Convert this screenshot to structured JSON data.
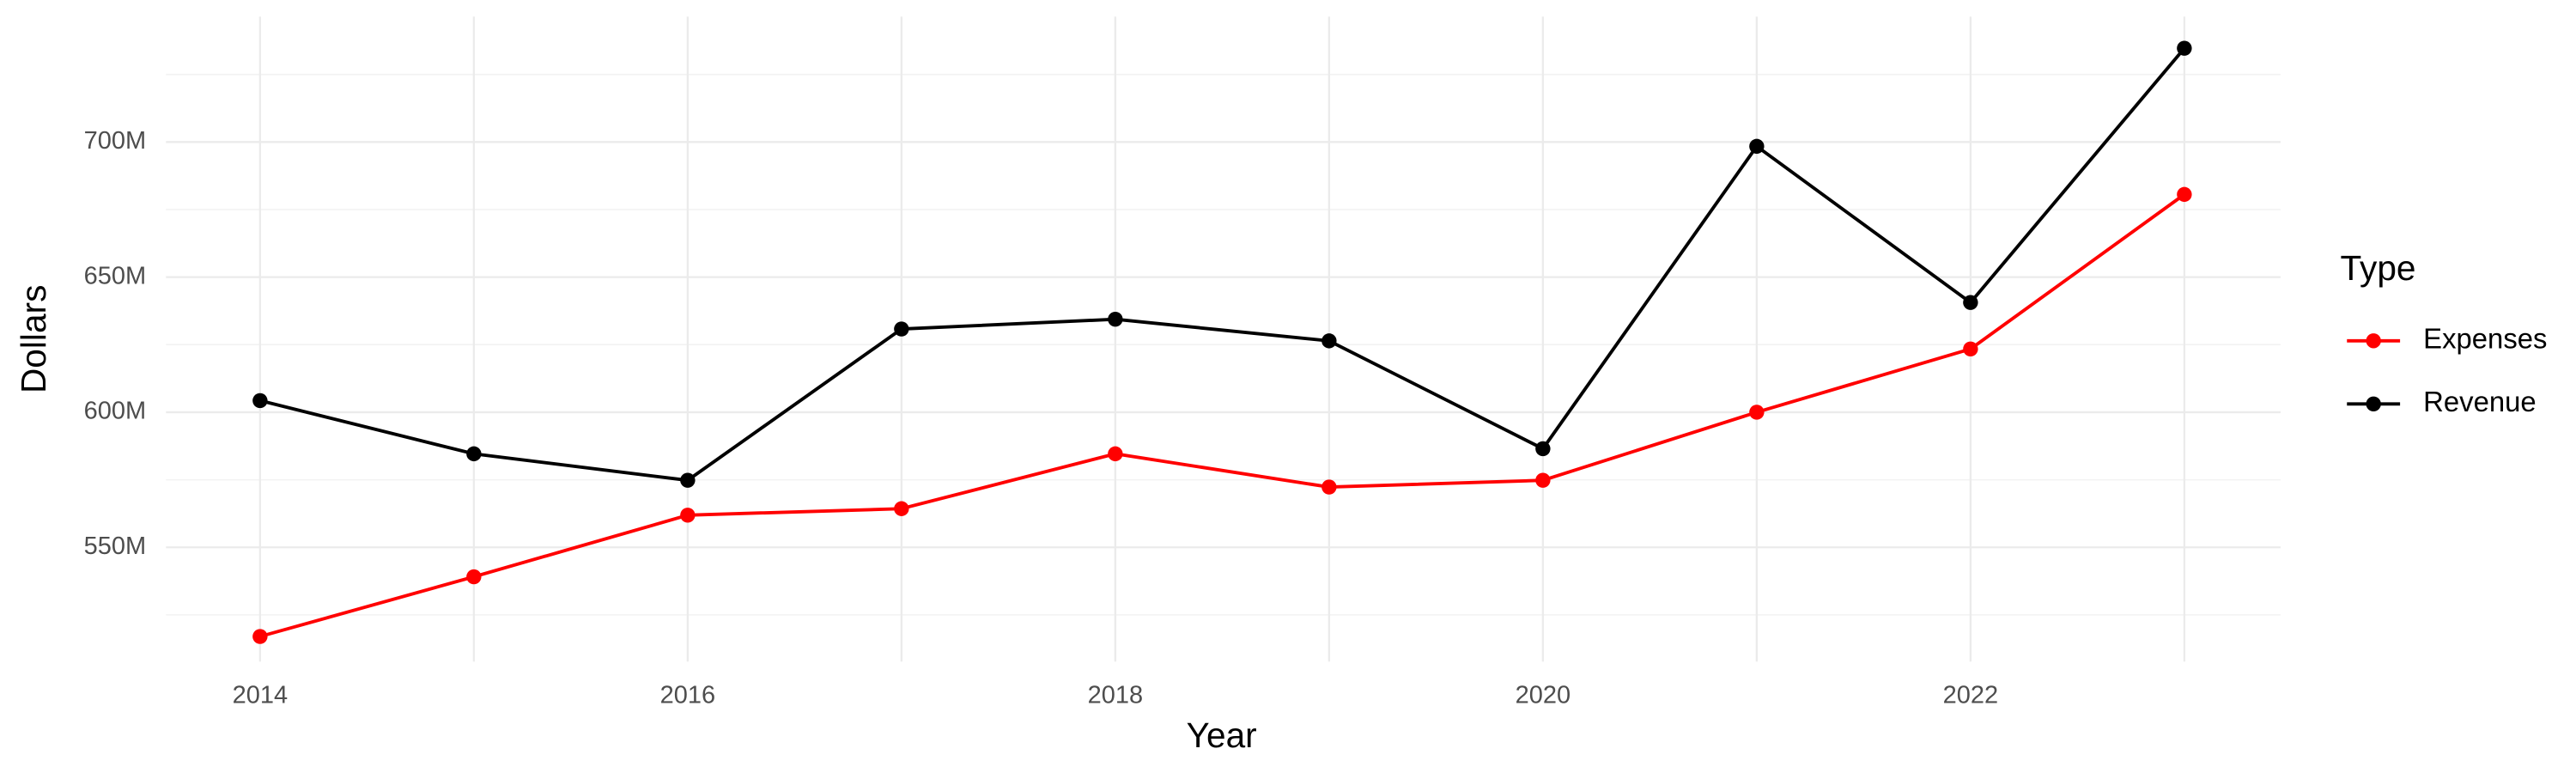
{
  "chart_data": {
    "type": "line",
    "x_label": "Year",
    "y_label": "Dollars",
    "legend_title": "Type",
    "x": [
      2014,
      2015,
      2016,
      2017,
      2018,
      2019,
      2020,
      2021,
      2022,
      2023
    ],
    "series": [
      {
        "name": "Expenses",
        "color": "#ff0000",
        "values": [
          517000000,
          539100000,
          561900000,
          564300000,
          584600000,
          572300000,
          574800000,
          600000000,
          623400000,
          680600000
        ]
      },
      {
        "name": "Revenue",
        "color": "#000000",
        "values": [
          604300000,
          584600000,
          574800000,
          630800000,
          634400000,
          626400000,
          586500000,
          698400000,
          640600000,
          734700000
        ]
      }
    ],
    "xlim": [
      2013.56,
      2023.45
    ],
    "xticks": [
      2014,
      2016,
      2018,
      2020,
      2022
    ],
    "xminorticks": [
      2015,
      2017,
      2019,
      2021,
      2023
    ],
    "ylim": [
      507700000,
      746400000
    ],
    "yticks": [
      {
        "value": 550000000,
        "label": "550M"
      },
      {
        "value": 600000000,
        "label": "600M"
      },
      {
        "value": 650000000,
        "label": "650M"
      },
      {
        "value": 700000000,
        "label": "700M"
      }
    ],
    "yminorticks": [
      525000000,
      575000000,
      625000000,
      675000000,
      725000000
    ],
    "grid": true,
    "legend": "right"
  }
}
